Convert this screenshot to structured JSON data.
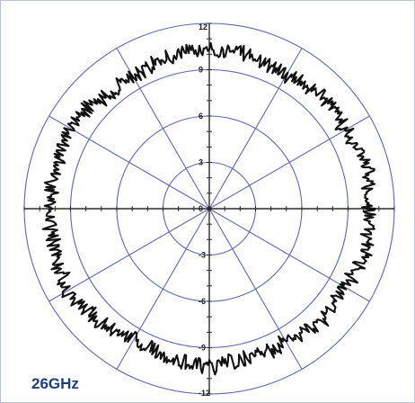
{
  "label": "26GHz",
  "colors": {
    "grid": "#5b67b3",
    "axis": "#2b2b2b",
    "trace": "#111111",
    "label": "#1f3f7a"
  },
  "chart_data": {
    "type": "polar",
    "r_range": [
      0,
      12
    ],
    "r_ticks": [
      3,
      6,
      9,
      12
    ],
    "tick_labels": {
      "top": [
        "12",
        "9",
        "6",
        "3",
        "0"
      ],
      "bottom": [
        "-3",
        "-6",
        "-9",
        "-12"
      ]
    },
    "angular_grid_step_deg": 30,
    "series": [
      {
        "theta_deg": [
          0,
          15,
          30,
          45,
          60,
          75,
          90,
          105,
          120,
          135,
          150,
          165,
          180,
          195,
          210,
          225,
          240,
          255,
          270,
          285,
          300,
          315,
          330,
          345
        ],
        "r": [
          10.3,
          10.6,
          10.2,
          10.4,
          10.0,
          10.3,
          10.4,
          10.1,
          9.8,
          10.0,
          10.6,
          10.2,
          10.4,
          10.3,
          10.6,
          10.2,
          9.8,
          10.0,
          10.2,
          9.9,
          10.0,
          10.3,
          10.1,
          10.5
        ]
      }
    ]
  }
}
